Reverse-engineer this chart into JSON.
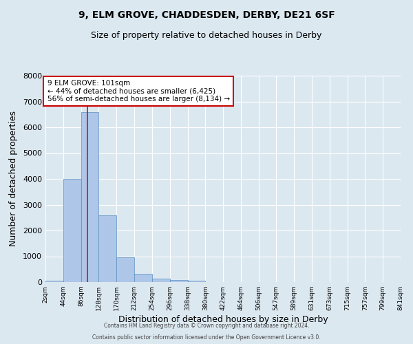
{
  "title": "9, ELM GROVE, CHADDESDEN, DERBY, DE21 6SF",
  "subtitle": "Size of property relative to detached houses in Derby",
  "xlabel": "Distribution of detached houses by size in Derby",
  "ylabel": "Number of detached properties",
  "bar_color": "#aec6e8",
  "bar_edge_color": "#5a8fc0",
  "bg_color": "#dce8f0",
  "grid_color": "#ffffff",
  "bin_edges": [
    2,
    44,
    86,
    128,
    170,
    212,
    254,
    296,
    338,
    380,
    422,
    464,
    506,
    547,
    589,
    631,
    673,
    715,
    757,
    799,
    841
  ],
  "bin_labels": [
    "2sqm",
    "44sqm",
    "86sqm",
    "128sqm",
    "170sqm",
    "212sqm",
    "254sqm",
    "296sqm",
    "338sqm",
    "380sqm",
    "422sqm",
    "464sqm",
    "506sqm",
    "547sqm",
    "589sqm",
    "631sqm",
    "673sqm",
    "715sqm",
    "757sqm",
    "799sqm",
    "841sqm"
  ],
  "bar_heights": [
    50,
    4000,
    6600,
    2600,
    950,
    330,
    130,
    80,
    50,
    0,
    0,
    0,
    0,
    0,
    0,
    0,
    0,
    0,
    0,
    0
  ],
  "ylim": [
    0,
    8000
  ],
  "yticks": [
    0,
    1000,
    2000,
    3000,
    4000,
    5000,
    6000,
    7000,
    8000
  ],
  "annotation_title": "9 ELM GROVE: 101sqm",
  "annotation_line1": "← 44% of detached houses are smaller (6,425)",
  "annotation_line2": "56% of semi-detached houses are larger (8,134) →",
  "annotation_box_color": "#ffffff",
  "annotation_box_edge_color": "#cc0000",
  "red_line_x": 101,
  "footer1": "Contains HM Land Registry data © Crown copyright and database right 2024.",
  "footer2": "Contains public sector information licensed under the Open Government Licence v3.0."
}
